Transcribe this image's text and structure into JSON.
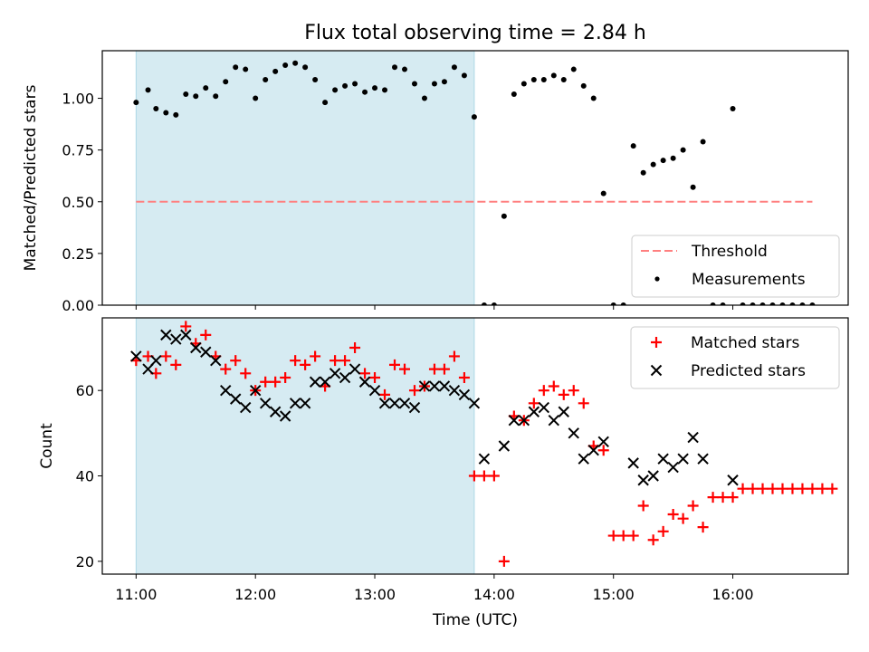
{
  "figure": {
    "title": "Flux total observing time = 2.84 h",
    "xlabel": "Time (UTC)",
    "xticks": [
      "11:00",
      "12:00",
      "13:00",
      "14:00",
      "15:00",
      "16:00"
    ],
    "shaded_interval_label": "",
    "shade_color": "#add8e6"
  },
  "chart_data": [
    {
      "type": "scatter",
      "ylabel": "Matched/Predicted stars",
      "xlim": [
        "10:43",
        "16:58"
      ],
      "ylim": [
        0.0,
        1.23
      ],
      "yticks": [
        "0.00",
        "0.25",
        "0.50",
        "0.75",
        "1.00"
      ],
      "shaded_x": [
        "11:00",
        "13:50"
      ],
      "threshold": {
        "name": "Threshold",
        "value": 0.5,
        "x_range": [
          "11:00",
          "16:40"
        ],
        "color": "#ff8080"
      },
      "legend": {
        "position": "lower right",
        "entries": [
          "Threshold",
          "Measurements"
        ]
      },
      "series": [
        {
          "name": "Measurements",
          "color": "#000000",
          "marker": "dot",
          "points": [
            [
              "11:00",
              0.98
            ],
            [
              "11:06",
              1.04
            ],
            [
              "11:10",
              0.95
            ],
            [
              "11:15",
              0.93
            ],
            [
              "11:20",
              0.92
            ],
            [
              "11:25",
              1.02
            ],
            [
              "11:30",
              1.01
            ],
            [
              "11:35",
              1.05
            ],
            [
              "11:40",
              1.01
            ],
            [
              "11:45",
              1.08
            ],
            [
              "11:50",
              1.15
            ],
            [
              "11:55",
              1.14
            ],
            [
              "12:00",
              1.0
            ],
            [
              "12:05",
              1.09
            ],
            [
              "12:10",
              1.13
            ],
            [
              "12:15",
              1.16
            ],
            [
              "12:20",
              1.17
            ],
            [
              "12:25",
              1.15
            ],
            [
              "12:30",
              1.09
            ],
            [
              "12:35",
              0.98
            ],
            [
              "12:40",
              1.04
            ],
            [
              "12:45",
              1.06
            ],
            [
              "12:50",
              1.07
            ],
            [
              "12:55",
              1.03
            ],
            [
              "13:00",
              1.05
            ],
            [
              "13:05",
              1.04
            ],
            [
              "13:10",
              1.15
            ],
            [
              "13:15",
              1.14
            ],
            [
              "13:20",
              1.07
            ],
            [
              "13:25",
              1.0
            ],
            [
              "13:30",
              1.07
            ],
            [
              "13:35",
              1.08
            ],
            [
              "13:40",
              1.15
            ],
            [
              "13:45",
              1.11
            ],
            [
              "13:50",
              0.91
            ],
            [
              "13:55",
              0.0
            ],
            [
              "14:00",
              0.0
            ],
            [
              "14:05",
              0.43
            ],
            [
              "14:10",
              1.02
            ],
            [
              "14:15",
              1.07
            ],
            [
              "14:20",
              1.09
            ],
            [
              "14:25",
              1.09
            ],
            [
              "14:30",
              1.11
            ],
            [
              "14:35",
              1.09
            ],
            [
              "14:40",
              1.14
            ],
            [
              "14:45",
              1.06
            ],
            [
              "14:50",
              1.0
            ],
            [
              "14:55",
              0.54
            ],
            [
              "15:00",
              0.0
            ],
            [
              "15:05",
              0.0
            ],
            [
              "15:10",
              0.77
            ],
            [
              "15:15",
              0.64
            ],
            [
              "15:20",
              0.68
            ],
            [
              "15:25",
              0.7
            ],
            [
              "15:30",
              0.71
            ],
            [
              "15:35",
              0.75
            ],
            [
              "15:40",
              0.57
            ],
            [
              "15:45",
              0.79
            ],
            [
              "15:50",
              0.0
            ],
            [
              "15:55",
              0.0
            ],
            [
              "16:00",
              0.95
            ],
            [
              "16:05",
              0.0
            ],
            [
              "16:10",
              0.0
            ],
            [
              "16:15",
              0.0
            ],
            [
              "16:20",
              0.0
            ],
            [
              "16:25",
              0.0
            ],
            [
              "16:30",
              0.0
            ],
            [
              "16:35",
              0.0
            ],
            [
              "16:40",
              0.0
            ]
          ]
        }
      ]
    },
    {
      "type": "scatter",
      "ylabel": "Count",
      "xlim": [
        "10:43",
        "16:58"
      ],
      "ylim": [
        17,
        77
      ],
      "yticks": [
        "20",
        "40",
        "60"
      ],
      "shaded_x": [
        "11:00",
        "13:50"
      ],
      "legend": {
        "position": "upper right",
        "entries": [
          "Matched stars",
          "Predicted stars"
        ]
      },
      "series": [
        {
          "name": "Matched stars",
          "color": "#ff0000",
          "marker": "plus",
          "points": [
            [
              "11:00",
              67
            ],
            [
              "11:06",
              68
            ],
            [
              "11:10",
              64
            ],
            [
              "11:15",
              68
            ],
            [
              "11:20",
              66
            ],
            [
              "11:25",
              75
            ],
            [
              "11:30",
              71
            ],
            [
              "11:35",
              73
            ],
            [
              "11:40",
              68
            ],
            [
              "11:45",
              65
            ],
            [
              "11:50",
              67
            ],
            [
              "11:55",
              64
            ],
            [
              "12:00",
              60
            ],
            [
              "12:05",
              62
            ],
            [
              "12:10",
              62
            ],
            [
              "12:15",
              63
            ],
            [
              "12:20",
              67
            ],
            [
              "12:25",
              66
            ],
            [
              "12:30",
              68
            ],
            [
              "12:35",
              61
            ],
            [
              "12:40",
              67
            ],
            [
              "12:45",
              67
            ],
            [
              "12:50",
              70
            ],
            [
              "12:55",
              64
            ],
            [
              "13:00",
              63
            ],
            [
              "13:05",
              59
            ],
            [
              "13:10",
              66
            ],
            [
              "13:15",
              65
            ],
            [
              "13:20",
              60
            ],
            [
              "13:25",
              61
            ],
            [
              "13:30",
              65
            ],
            [
              "13:35",
              65
            ],
            [
              "13:40",
              68
            ],
            [
              "13:45",
              63
            ],
            [
              "13:50",
              40
            ],
            [
              "13:55",
              40
            ],
            [
              "14:00",
              40
            ],
            [
              "14:05",
              20
            ],
            [
              "14:10",
              54
            ],
            [
              "14:15",
              53
            ],
            [
              "14:20",
              57
            ],
            [
              "14:25",
              60
            ],
            [
              "14:30",
              61
            ],
            [
              "14:35",
              59
            ],
            [
              "14:40",
              60
            ],
            [
              "14:45",
              57
            ],
            [
              "14:50",
              47
            ],
            [
              "14:55",
              46
            ],
            [
              "15:00",
              26
            ],
            [
              "15:05",
              26
            ],
            [
              "15:10",
              26
            ],
            [
              "15:15",
              33
            ],
            [
              "15:20",
              25
            ],
            [
              "15:25",
              27
            ],
            [
              "15:30",
              31
            ],
            [
              "15:35",
              30
            ],
            [
              "15:40",
              33
            ],
            [
              "15:45",
              28
            ],
            [
              "15:50",
              35
            ],
            [
              "15:55",
              35
            ],
            [
              "16:00",
              35
            ],
            [
              "16:05",
              37
            ],
            [
              "16:10",
              37
            ],
            [
              "16:15",
              37
            ],
            [
              "16:20",
              37
            ],
            [
              "16:25",
              37
            ],
            [
              "16:30",
              37
            ],
            [
              "16:35",
              37
            ],
            [
              "16:40",
              37
            ],
            [
              "16:45",
              37
            ],
            [
              "16:50",
              37
            ]
          ]
        },
        {
          "name": "Predicted stars",
          "color": "#000000",
          "marker": "x",
          "points": [
            [
              "11:00",
              68
            ],
            [
              "11:06",
              65
            ],
            [
              "11:10",
              67
            ],
            [
              "11:15",
              73
            ],
            [
              "11:20",
              72
            ],
            [
              "11:25",
              73
            ],
            [
              "11:30",
              70
            ],
            [
              "11:35",
              69
            ],
            [
              "11:40",
              67
            ],
            [
              "11:45",
              60
            ],
            [
              "11:50",
              58
            ],
            [
              "11:55",
              56
            ],
            [
              "12:00",
              60
            ],
            [
              "12:05",
              57
            ],
            [
              "12:10",
              55
            ],
            [
              "12:15",
              54
            ],
            [
              "12:20",
              57
            ],
            [
              "12:25",
              57
            ],
            [
              "12:30",
              62
            ],
            [
              "12:35",
              62
            ],
            [
              "12:40",
              64
            ],
            [
              "12:45",
              63
            ],
            [
              "12:50",
              65
            ],
            [
              "12:55",
              62
            ],
            [
              "13:00",
              60
            ],
            [
              "13:05",
              57
            ],
            [
              "13:10",
              57
            ],
            [
              "13:15",
              57
            ],
            [
              "13:20",
              56
            ],
            [
              "13:25",
              61
            ],
            [
              "13:30",
              61
            ],
            [
              "13:35",
              61
            ],
            [
              "13:40",
              60
            ],
            [
              "13:45",
              59
            ],
            [
              "13:50",
              57
            ],
            [
              "13:55",
              44
            ],
            [
              "14:05",
              47
            ],
            [
              "14:10",
              53
            ],
            [
              "14:15",
              53
            ],
            [
              "14:20",
              55
            ],
            [
              "14:25",
              56
            ],
            [
              "14:30",
              53
            ],
            [
              "14:35",
              55
            ],
            [
              "14:40",
              50
            ],
            [
              "14:45",
              44
            ],
            [
              "14:50",
              46
            ],
            [
              "14:55",
              48
            ],
            [
              "15:10",
              43
            ],
            [
              "15:15",
              39
            ],
            [
              "15:20",
              40
            ],
            [
              "15:25",
              44
            ],
            [
              "15:30",
              42
            ],
            [
              "15:35",
              44
            ],
            [
              "15:40",
              49
            ],
            [
              "15:45",
              44
            ],
            [
              "16:00",
              39
            ]
          ]
        }
      ]
    }
  ]
}
